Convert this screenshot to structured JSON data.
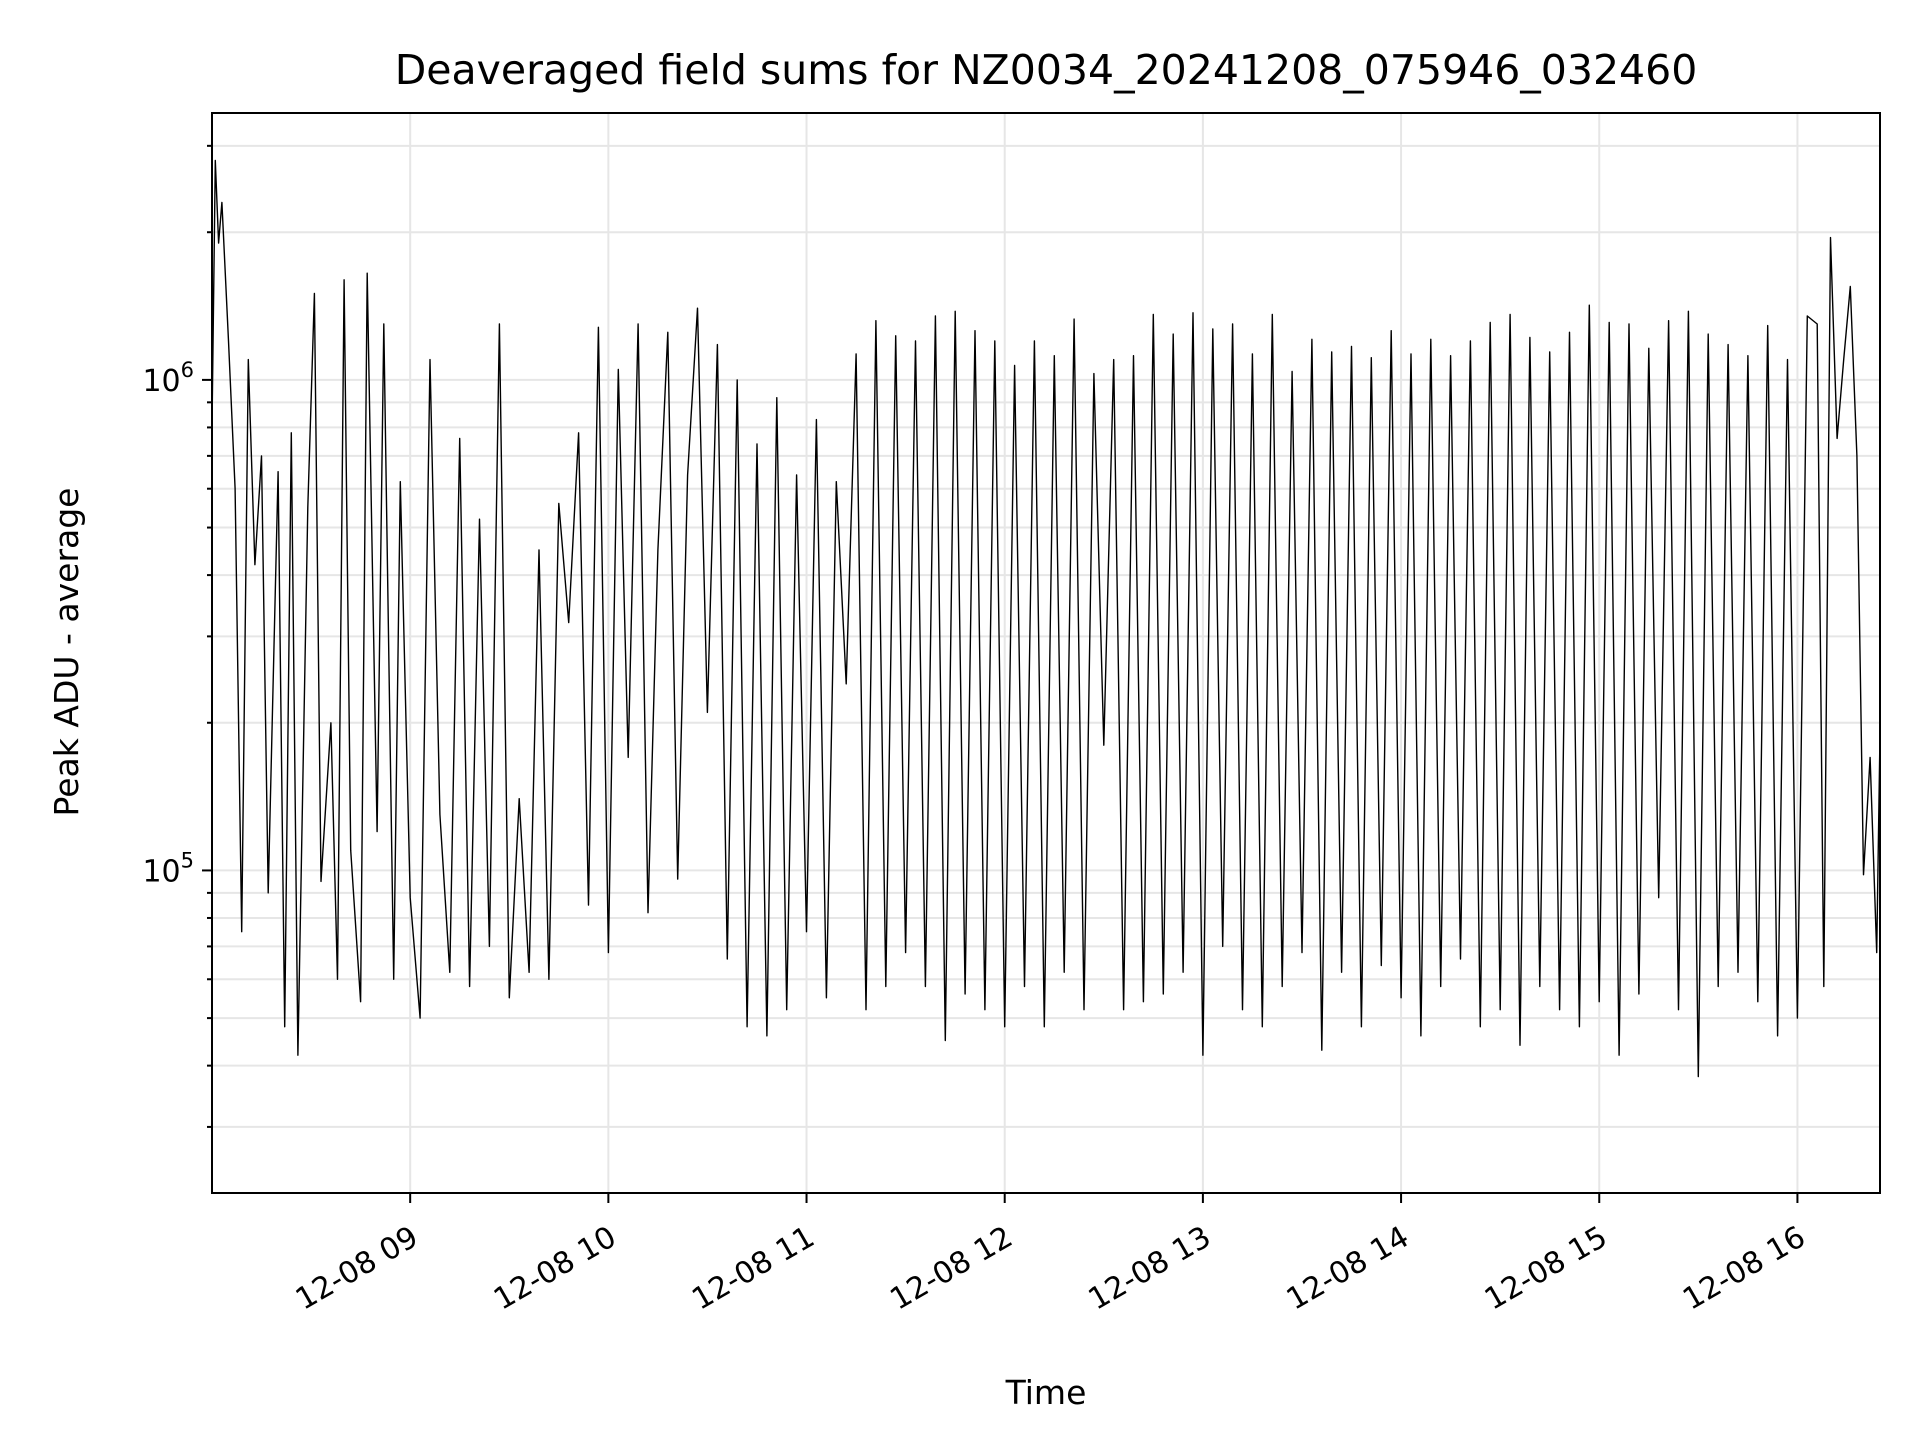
{
  "chart_data": {
    "type": "line",
    "title": "Deaveraged field sums for NZ0034_20241208_075946_032460",
    "xlabel": "Time",
    "ylabel": "Peak ADU - average",
    "y_scale": "log",
    "ylim": [
      22000,
      3500000
    ],
    "xlim": [
      "2024-12-08 08:00:00",
      "2024-12-08 16:25:00"
    ],
    "x_ticks": [
      "12-08 09",
      "12-08 10",
      "12-08 11",
      "12-08 12",
      "12-08 13",
      "12-08 14",
      "12-08 15",
      "12-08 16"
    ],
    "x_tick_times": [
      "2024-12-08 09:00",
      "2024-12-08 10:00",
      "2024-12-08 11:00",
      "2024-12-08 12:00",
      "2024-12-08 13:00",
      "2024-12-08 14:00",
      "2024-12-08 15:00",
      "2024-12-08 16:00"
    ],
    "y_ticks": [
      {
        "value": 100000,
        "base": "10",
        "exp": "5"
      },
      {
        "value": 1000000,
        "base": "10",
        "exp": "6"
      }
    ],
    "grid": true,
    "line_color": "#000000",
    "series": [
      {
        "x": [
          "08:00",
          "08:01",
          "08:02",
          "08:03",
          "08:05",
          "08:07",
          "08:09",
          "08:11",
          "08:13",
          "08:15",
          "08:17",
          "08:20",
          "08:22",
          "08:24",
          "08:26",
          "08:29",
          "08:31",
          "08:33",
          "08:36",
          "08:38",
          "08:40",
          "08:42",
          "08:45",
          "08:47",
          "08:50",
          "08:52",
          "08:55",
          "08:57",
          "09:00",
          "09:03",
          "09:06",
          "09:09",
          "09:12",
          "09:15",
          "09:18",
          "09:21",
          "09:24",
          "09:27",
          "09:30",
          "09:33",
          "09:36",
          "09:39",
          "09:42",
          "09:45",
          "09:48",
          "09:51",
          "09:54",
          "09:57",
          "10:00",
          "10:03",
          "10:06",
          "10:09",
          "10:12",
          "10:15",
          "10:18",
          "10:21",
          "10:24",
          "10:27",
          "10:30",
          "10:33",
          "10:36",
          "10:39",
          "10:42",
          "10:45",
          "10:48",
          "10:51",
          "10:54",
          "10:57",
          "11:00",
          "11:03",
          "11:06",
          "11:09",
          "11:12",
          "11:15",
          "11:18",
          "11:21",
          "11:24",
          "11:27",
          "11:30",
          "11:33",
          "11:36",
          "11:39",
          "11:42",
          "11:45",
          "11:48",
          "11:51",
          "11:54",
          "11:57",
          "12:00",
          "12:03",
          "12:06",
          "12:09",
          "12:12",
          "12:15",
          "12:18",
          "12:21",
          "12:24",
          "12:27",
          "12:30",
          "12:33",
          "12:36",
          "12:39",
          "12:42",
          "12:45",
          "12:48",
          "12:51",
          "12:54",
          "12:57",
          "13:00",
          "13:03",
          "13:06",
          "13:09",
          "13:12",
          "13:15",
          "13:18",
          "13:21",
          "13:24",
          "13:27",
          "13:30",
          "13:33",
          "13:36",
          "13:39",
          "13:42",
          "13:45",
          "13:48",
          "13:51",
          "13:54",
          "13:57",
          "14:00",
          "14:03",
          "14:06",
          "14:09",
          "14:12",
          "14:15",
          "14:18",
          "14:21",
          "14:24",
          "14:27",
          "14:30",
          "14:33",
          "14:36",
          "14:39",
          "14:42",
          "14:45",
          "14:48",
          "14:51",
          "14:54",
          "14:57",
          "15:00",
          "15:03",
          "15:06",
          "15:09",
          "15:12",
          "15:15",
          "15:18",
          "15:21",
          "15:24",
          "15:27",
          "15:30",
          "15:33",
          "15:36",
          "15:39",
          "15:42",
          "15:45",
          "15:48",
          "15:51",
          "15:54",
          "15:57",
          "16:00",
          "16:03",
          "16:06",
          "16:08",
          "16:10",
          "16:12",
          "16:14",
          "16:16",
          "16:18",
          "16:20",
          "16:22",
          "16:24",
          "16:25"
        ],
        "y": [
          800000,
          2800000,
          1900000,
          2300000,
          1200000,
          600000,
          75000,
          1100000,
          420000,
          700000,
          90000,
          650000,
          48000,
          780000,
          42000,
          550000,
          1500000,
          95000,
          200000,
          60000,
          1600000,
          110000,
          54000,
          1650000,
          120000,
          1300000,
          60000,
          620000,
          88000,
          50000,
          1100000,
          130000,
          62000,
          760000,
          58000,
          520000,
          70000,
          1300000,
          55000,
          140000,
          62000,
          450000,
          60000,
          560000,
          320000,
          780000,
          85000,
          1280000,
          68000,
          1050000,
          170000,
          1300000,
          82000,
          450000,
          1250000,
          96000,
          640000,
          1400000,
          210000,
          1180000,
          66000,
          1000000,
          48000,
          740000,
          46000,
          920000,
          52000,
          640000,
          75000,
          830000,
          55000,
          620000,
          240000,
          1130000,
          52000,
          1320000,
          58000,
          1230000,
          68000,
          1200000,
          58000,
          1350000,
          45000,
          1380000,
          56000,
          1260000,
          52000,
          1200000,
          48000,
          1070000,
          58000,
          1200000,
          48000,
          1120000,
          62000,
          1330000,
          52000,
          1030000,
          180000,
          1100000,
          52000,
          1120000,
          54000,
          1360000,
          56000,
          1240000,
          62000,
          1370000,
          42000,
          1270000,
          70000,
          1300000,
          52000,
          1130000,
          48000,
          1360000,
          58000,
          1040000,
          68000,
          1210000,
          43000,
          1140000,
          62000,
          1170000,
          48000,
          1110000,
          64000,
          1260000,
          55000,
          1130000,
          46000,
          1210000,
          58000,
          1120000,
          66000,
          1200000,
          48000,
          1310000,
          52000,
          1360000,
          44000,
          1220000,
          58000,
          1140000,
          52000,
          1250000,
          48000,
          1420000,
          54000,
          1310000,
          42000,
          1300000,
          56000,
          1160000,
          88000,
          1320000,
          52000,
          1380000,
          38000,
          1240000,
          58000,
          1180000,
          62000,
          1120000,
          54000,
          1290000,
          46000,
          1100000,
          50000,
          1350000,
          1300000,
          58000,
          1950000,
          760000,
          1100000,
          1550000,
          700000,
          98000,
          170000,
          68000,
          190000
        ]
      }
    ]
  }
}
